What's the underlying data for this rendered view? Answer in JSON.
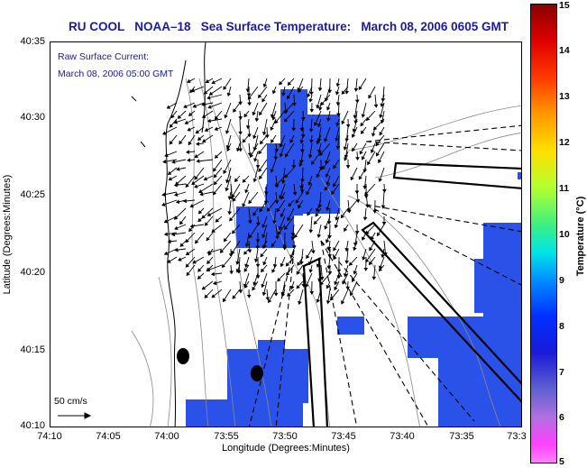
{
  "title": "RU COOL   NOAA–18   Sea Surface Temperature:   March 08, 2006 0605 GMT",
  "raw_label": "Raw Surface Current:",
  "raw_time": "March 08, 2006 05:00 GMT",
  "axes": {
    "x_title": "Longitude (Degrees:Minutes)",
    "y_title": "Latitude (Degrees:Minutes)",
    "x_ticks": [
      "74:10",
      "74:05",
      "74:00",
      "73:55",
      "73:50",
      "73:45",
      "73:40",
      "73:35",
      "73:3"
    ],
    "y_ticks": [
      "40:35",
      "40:30",
      "40:25",
      "40:20",
      "40:15",
      "40:10"
    ]
  },
  "colorbar": {
    "title": "Temperature (°C)",
    "ticks": [
      "15",
      "14",
      "13",
      "12",
      "11",
      "10",
      "9",
      "8",
      "7",
      "6",
      "5"
    ],
    "range": [
      5,
      15
    ]
  },
  "scale": {
    "label": "50 cm/s"
  },
  "colors": {
    "title": "#1a1aa8",
    "sst_patch": "#2a52e8",
    "land_outline": "#000000"
  }
}
